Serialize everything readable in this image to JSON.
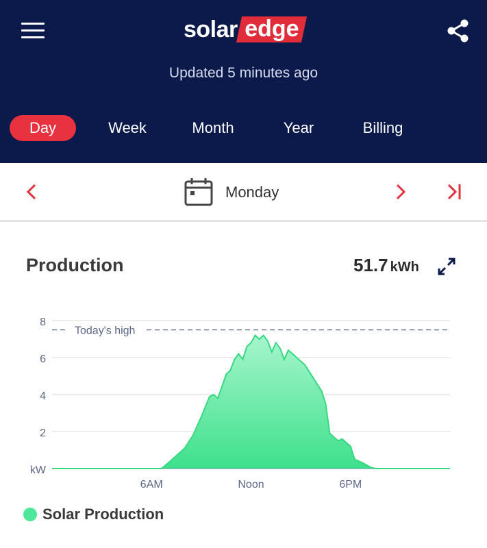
{
  "header": {
    "logo_left": "solar",
    "logo_right": "edge",
    "updated_text": "Updated 5 minutes ago",
    "menu_icon": "hamburger-menu-icon",
    "share_icon": "share-icon"
  },
  "tabs": [
    {
      "label": "Day",
      "active": true
    },
    {
      "label": "Week",
      "active": false
    },
    {
      "label": "Month",
      "active": false
    },
    {
      "label": "Year",
      "active": false
    },
    {
      "label": "Billing",
      "active": false
    }
  ],
  "date_nav": {
    "date_label": "Monday",
    "prev_icon": "chevron-left-icon",
    "next_icon": "chevron-right-icon",
    "last_icon": "skip-to-end-icon",
    "calendar_icon": "calendar-icon"
  },
  "production": {
    "title": "Production",
    "value": "51.7",
    "unit": "kWh",
    "expand_icon": "expand-icon"
  },
  "chart_data": {
    "type": "area",
    "y_unit_label": "kW",
    "ylim": [
      0,
      10
    ],
    "y_ticks": [
      2,
      4,
      6,
      8
    ],
    "x_ticks": [
      {
        "label": "6AM",
        "hour": 6
      },
      {
        "label": "Noon",
        "hour": 12
      },
      {
        "label": "6PM",
        "hour": 18
      }
    ],
    "reference_line": {
      "label": "Today's high",
      "value": 7.5
    },
    "series": [
      {
        "name": "Solar Production",
        "color": "#4fe89a",
        "points": [
          [
            0,
            0
          ],
          [
            6.6,
            0
          ],
          [
            7.0,
            0.3
          ],
          [
            7.5,
            0.7
          ],
          [
            8.0,
            1.1
          ],
          [
            8.5,
            1.8
          ],
          [
            9.0,
            2.8
          ],
          [
            9.5,
            3.9
          ],
          [
            9.75,
            4.0
          ],
          [
            10.0,
            3.8
          ],
          [
            10.5,
            5.1
          ],
          [
            10.75,
            5.3
          ],
          [
            11.0,
            5.9
          ],
          [
            11.25,
            6.2
          ],
          [
            11.5,
            5.9
          ],
          [
            11.75,
            6.6
          ],
          [
            12.0,
            6.8
          ],
          [
            12.25,
            7.2
          ],
          [
            12.5,
            7.0
          ],
          [
            12.75,
            7.2
          ],
          [
            13.0,
            6.9
          ],
          [
            13.25,
            6.3
          ],
          [
            13.5,
            6.8
          ],
          [
            13.75,
            6.5
          ],
          [
            14.0,
            5.9
          ],
          [
            14.25,
            6.4
          ],
          [
            14.75,
            6.0
          ],
          [
            15.25,
            5.6
          ],
          [
            15.75,
            4.9
          ],
          [
            16.25,
            4.2
          ],
          [
            16.5,
            3.5
          ],
          [
            16.75,
            1.9
          ],
          [
            17.0,
            1.7
          ],
          [
            17.25,
            1.5
          ],
          [
            17.5,
            1.6
          ],
          [
            17.75,
            1.4
          ],
          [
            18.0,
            1.2
          ],
          [
            18.25,
            0.5
          ],
          [
            18.75,
            0.3
          ],
          [
            19.25,
            0.05
          ],
          [
            19.5,
            0
          ],
          [
            24,
            0
          ]
        ]
      }
    ]
  },
  "legend": {
    "label": "Solar Production"
  }
}
